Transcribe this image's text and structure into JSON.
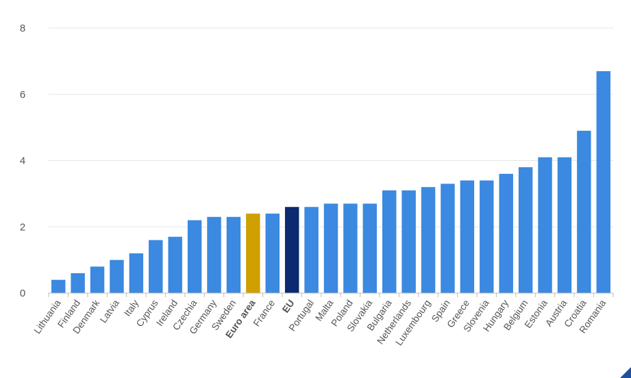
{
  "chart_data": {
    "type": "bar",
    "title": "",
    "xlabel": "",
    "ylabel": "",
    "ylim": [
      0,
      8
    ],
    "yticks": [
      0,
      2,
      4,
      6,
      8
    ],
    "grid": true,
    "categories": [
      "Lithuania",
      "Finland",
      "Denmark",
      "Latvia",
      "Italy",
      "Cyprus",
      "Ireland",
      "Czechia",
      "Germany",
      "Sweden",
      "Euro area",
      "France",
      "EU",
      "Portugal",
      "Malta",
      "Poland",
      "Slovakia",
      "Bulgaria",
      "Netherlands",
      "Luxembourg",
      "Spain",
      "Greece",
      "Slovenia",
      "Hungary",
      "Belgium",
      "Estonia",
      "Austria",
      "Croatia",
      "Romania"
    ],
    "values": [
      0.4,
      0.6,
      0.8,
      1.0,
      1.2,
      1.6,
      1.7,
      2.2,
      2.3,
      2.3,
      2.4,
      2.4,
      2.6,
      2.6,
      2.7,
      2.7,
      2.7,
      3.1,
      3.1,
      3.2,
      3.3,
      3.4,
      3.4,
      3.6,
      3.8,
      4.1,
      4.1,
      4.9,
      6.7
    ],
    "bold_categories": [
      "Euro area",
      "EU"
    ],
    "colors": {
      "default": "#3b89e0",
      "Euro area": "#cfa000",
      "EU": "#0b2a6f"
    }
  }
}
